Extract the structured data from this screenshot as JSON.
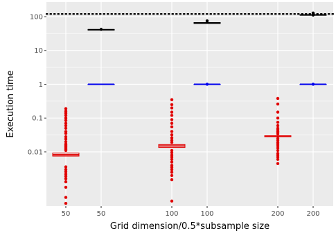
{
  "chart_data": {
    "type": "boxplot",
    "xlabel": "Grid dimension/0.5*subsample size",
    "ylabel": "Execution time",
    "y_scale": "log10",
    "ylim": [
      0.00025,
      270
    ],
    "y_ticks": [
      {
        "value": 0.01,
        "label": "0.01"
      },
      {
        "value": 0.1,
        "label": "0.1"
      },
      {
        "value": 1,
        "label": "1"
      },
      {
        "value": 10,
        "label": "10"
      },
      {
        "value": 100,
        "label": "100"
      }
    ],
    "categories": [
      "50",
      "50",
      "100",
      "100",
      "200",
      "200"
    ],
    "reference_line": {
      "value": 120,
      "style": "dotted",
      "color": "#000000"
    },
    "colors": {
      "red": "#e00000",
      "blue": "#0000ee",
      "black": "#000000",
      "panel": "#ebebeb",
      "grid": "#ffffff"
    },
    "boxes": [
      {
        "category_index": 0,
        "color": "#e00000",
        "q1": 0.0075,
        "median": 0.0082,
        "q3": 0.0092,
        "outliers": [
          0.19,
          0.16,
          0.14,
          0.12,
          0.1,
          0.085,
          0.07,
          0.06,
          0.05,
          0.04,
          0.035,
          0.028,
          0.024,
          0.02,
          0.017,
          0.016,
          0.015,
          0.014,
          0.013,
          0.012,
          0.011,
          0.0036,
          0.003,
          0.0026,
          0.0022,
          0.0019,
          0.0016,
          0.0013,
          0.0009,
          0.00045,
          0.0003
        ]
      },
      {
        "category_index": 1,
        "color": "#000000",
        "q1": 40,
        "median": 41,
        "q3": 42,
        "outliers": [
          42
        ]
      },
      {
        "category_index": 1,
        "color": "#0000ee",
        "q1": 1.0,
        "median": 1.0,
        "q3": 1.0,
        "outliers": []
      },
      {
        "category_index": 2,
        "color": "#e00000",
        "q1": 0.0135,
        "median": 0.015,
        "q3": 0.0165,
        "outliers": [
          0.35,
          0.25,
          0.2,
          0.15,
          0.12,
          0.09,
          0.07,
          0.055,
          0.04,
          0.032,
          0.026,
          0.022,
          0.019,
          0.011,
          0.0095,
          0.008,
          0.007,
          0.006,
          0.005,
          0.004,
          0.0035,
          0.003,
          0.0025,
          0.002,
          0.0015,
          0.00035
        ]
      },
      {
        "category_index": 3,
        "color": "#000000",
        "q1": 63,
        "median": 65,
        "q3": 67,
        "outliers": [
          75
        ]
      },
      {
        "category_index": 3,
        "color": "#0000ee",
        "q1": 1.0,
        "median": 1.0,
        "q3": 1.0,
        "outliers": [
          1.0
        ]
      },
      {
        "category_index": 4,
        "color": "#e00000",
        "q1": 0.028,
        "median": 0.029,
        "q3": 0.03,
        "outliers": [
          0.38,
          0.26,
          0.15,
          0.1,
          0.075,
          0.06,
          0.05,
          0.045,
          0.04,
          0.037,
          0.034,
          0.025,
          0.022,
          0.019,
          0.017,
          0.015,
          0.013,
          0.011,
          0.009,
          0.008,
          0.007,
          0.006,
          0.0045
        ]
      },
      {
        "category_index": 5,
        "color": "#000000",
        "q1": 110,
        "median": 112,
        "q3": 114,
        "outliers": [
          128,
          112,
          112
        ]
      },
      {
        "category_index": 5,
        "color": "#0000ee",
        "q1": 1.0,
        "median": 1.0,
        "q3": 1.0,
        "outliers": [
          1.0
        ]
      }
    ]
  }
}
